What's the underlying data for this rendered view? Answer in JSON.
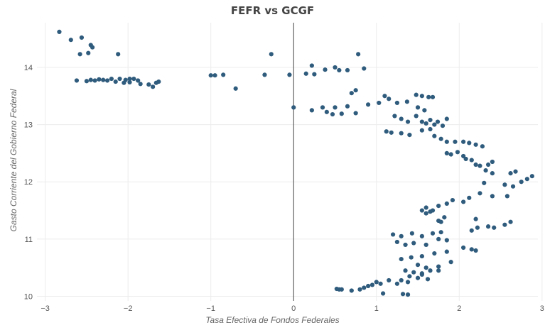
{
  "chart_data": {
    "type": "scatter",
    "title": "FEFR vs GCGF",
    "xlabel": "Tasa Efectiva de Fondos Federales",
    "ylabel": "Gasto Corriente del Gobierno Federal",
    "xlim": [
      -3.1,
      2.95
    ],
    "ylim": [
      9.92,
      14.78
    ],
    "xticks": [
      -3,
      -2,
      -1,
      0,
      1,
      2,
      3
    ],
    "yticks": [
      10,
      11,
      12,
      13,
      14
    ],
    "xtick_labels": [
      "−3",
      "−2",
      "−1",
      "0",
      "1",
      "2",
      "3"
    ],
    "ytick_labels": [
      "10",
      "11",
      "12",
      "13",
      "14"
    ],
    "grid": true,
    "zero_line_x": 0,
    "marker_color": "#2f5b7c",
    "points": [
      [
        -2.83,
        14.62
      ],
      [
        -2.69,
        14.48
      ],
      [
        -2.56,
        14.52
      ],
      [
        -2.45,
        14.39
      ],
      [
        -2.43,
        14.35
      ],
      [
        -2.48,
        14.25
      ],
      [
        -2.58,
        14.23
      ],
      [
        -2.12,
        14.23
      ],
      [
        -2.62,
        13.77
      ],
      [
        -2.5,
        13.76
      ],
      [
        -2.45,
        13.78
      ],
      [
        -2.4,
        13.77
      ],
      [
        -2.35,
        13.79
      ],
      [
        -2.3,
        13.78
      ],
      [
        -2.25,
        13.77
      ],
      [
        -2.2,
        13.8
      ],
      [
        -2.15,
        13.75
      ],
      [
        -2.1,
        13.8
      ],
      [
        -2.03,
        13.78
      ],
      [
        -1.98,
        13.74
      ],
      [
        -1.93,
        13.8
      ],
      [
        -1.88,
        13.77
      ],
      [
        -1.85,
        13.71
      ],
      [
        -1.75,
        13.7
      ],
      [
        -1.7,
        13.66
      ],
      [
        -1.66,
        13.73
      ],
      [
        -1.63,
        13.75
      ],
      [
        -2.05,
        13.73
      ],
      [
        -1.98,
        13.8
      ],
      [
        -1.0,
        13.86
      ],
      [
        -0.95,
        13.86
      ],
      [
        -0.85,
        13.87
      ],
      [
        -0.7,
        13.63
      ],
      [
        -0.35,
        13.87
      ],
      [
        -0.27,
        14.23
      ],
      [
        -0.05,
        13.87
      ],
      [
        0.0,
        13.3
      ],
      [
        0.15,
        13.89
      ],
      [
        0.22,
        14.03
      ],
      [
        0.25,
        13.88
      ],
      [
        0.38,
        13.96
      ],
      [
        0.5,
        14.0
      ],
      [
        0.55,
        13.95
      ],
      [
        0.65,
        13.95
      ],
      [
        0.78,
        14.23
      ],
      [
        0.85,
        13.98
      ],
      [
        0.75,
        13.6
      ],
      [
        0.7,
        13.55
      ],
      [
        0.65,
        13.32
      ],
      [
        0.5,
        13.3
      ],
      [
        0.35,
        13.3
      ],
      [
        0.22,
        13.25
      ],
      [
        0.4,
        13.22
      ],
      [
        0.47,
        13.18
      ],
      [
        0.58,
        13.19
      ],
      [
        0.75,
        13.2
      ],
      [
        0.9,
        13.35
      ],
      [
        1.03,
        13.38
      ],
      [
        1.1,
        13.5
      ],
      [
        1.15,
        13.45
      ],
      [
        1.25,
        13.38
      ],
      [
        1.37,
        13.4
      ],
      [
        1.48,
        13.52
      ],
      [
        1.55,
        13.5
      ],
      [
        1.63,
        13.48
      ],
      [
        1.68,
        13.48
      ],
      [
        1.22,
        13.15
      ],
      [
        1.3,
        13.1
      ],
      [
        1.38,
        13.05
      ],
      [
        1.48,
        13.15
      ],
      [
        1.55,
        13.05
      ],
      [
        1.6,
        13.02
      ],
      [
        1.65,
        13.08
      ],
      [
        1.7,
        13.0
      ],
      [
        1.74,
        13.05
      ],
      [
        1.8,
        12.98
      ],
      [
        1.85,
        13.1
      ],
      [
        1.5,
        13.3
      ],
      [
        1.58,
        13.25
      ],
      [
        1.12,
        12.88
      ],
      [
        1.18,
        12.86
      ],
      [
        1.3,
        12.85
      ],
      [
        1.4,
        12.82
      ],
      [
        1.55,
        12.9
      ],
      [
        1.65,
        12.92
      ],
      [
        1.7,
        12.8
      ],
      [
        1.78,
        12.75
      ],
      [
        1.85,
        12.7
      ],
      [
        1.95,
        12.7
      ],
      [
        2.05,
        12.7
      ],
      [
        2.12,
        12.68
      ],
      [
        2.2,
        12.65
      ],
      [
        2.28,
        12.62
      ],
      [
        1.85,
        12.5
      ],
      [
        1.9,
        12.48
      ],
      [
        1.98,
        12.52
      ],
      [
        2.05,
        12.45
      ],
      [
        2.08,
        12.4
      ],
      [
        2.15,
        12.38
      ],
      [
        2.2,
        12.3
      ],
      [
        2.25,
        12.28
      ],
      [
        2.35,
        12.3
      ],
      [
        2.4,
        12.35
      ],
      [
        2.32,
        12.2
      ],
      [
        2.4,
        12.15
      ],
      [
        2.62,
        12.15
      ],
      [
        2.68,
        12.18
      ],
      [
        2.55,
        11.95
      ],
      [
        2.65,
        11.92
      ],
      [
        2.75,
        12.0
      ],
      [
        2.82,
        12.05
      ],
      [
        2.88,
        12.1
      ],
      [
        2.3,
        11.98
      ],
      [
        2.25,
        11.8
      ],
      [
        2.4,
        11.75
      ],
      [
        2.58,
        11.75
      ],
      [
        2.12,
        11.72
      ],
      [
        2.05,
        11.65
      ],
      [
        1.92,
        11.68
      ],
      [
        1.85,
        11.62
      ],
      [
        1.75,
        11.58
      ],
      [
        1.6,
        11.55
      ],
      [
        1.55,
        11.5
      ],
      [
        1.68,
        11.5
      ],
      [
        1.65,
        11.48
      ],
      [
        1.6,
        11.45
      ],
      [
        1.82,
        11.38
      ],
      [
        1.75,
        11.32
      ],
      [
        1.78,
        11.3
      ],
      [
        2.2,
        11.35
      ],
      [
        2.35,
        11.22
      ],
      [
        2.42,
        11.2
      ],
      [
        2.55,
        11.25
      ],
      [
        2.62,
        11.3
      ],
      [
        2.22,
        11.2
      ],
      [
        1.2,
        11.08
      ],
      [
        1.3,
        11.05
      ],
      [
        1.43,
        11.1
      ],
      [
        1.55,
        11.05
      ],
      [
        1.68,
        11.1
      ],
      [
        1.78,
        11.12
      ],
      [
        2.15,
        11.15
      ],
      [
        1.25,
        10.95
      ],
      [
        1.35,
        10.9
      ],
      [
        1.45,
        10.93
      ],
      [
        1.6,
        10.9
      ],
      [
        1.75,
        11.0
      ],
      [
        1.85,
        10.98
      ],
      [
        2.05,
        10.85
      ],
      [
        2.15,
        10.82
      ],
      [
        2.2,
        10.8
      ],
      [
        1.3,
        10.65
      ],
      [
        1.42,
        10.68
      ],
      [
        1.55,
        10.7
      ],
      [
        1.7,
        10.75
      ],
      [
        1.85,
        10.78
      ],
      [
        1.5,
        10.55
      ],
      [
        1.6,
        10.5
      ],
      [
        1.75,
        10.52
      ],
      [
        1.9,
        10.6
      ],
      [
        1.35,
        10.45
      ],
      [
        1.45,
        10.42
      ],
      [
        1.55,
        10.4
      ],
      [
        1.65,
        10.45
      ],
      [
        1.75,
        10.45
      ],
      [
        1.4,
        10.35
      ],
      [
        1.5,
        10.32
      ],
      [
        1.62,
        10.3
      ],
      [
        1.55,
        10.38
      ],
      [
        1.3,
        10.28
      ],
      [
        1.38,
        10.25
      ],
      [
        1.25,
        10.22
      ],
      [
        1.15,
        10.28
      ],
      [
        1.05,
        10.22
      ],
      [
        1.0,
        10.25
      ],
      [
        0.95,
        10.2
      ],
      [
        0.9,
        10.18
      ],
      [
        0.85,
        10.15
      ],
      [
        0.8,
        10.12
      ],
      [
        0.7,
        10.1
      ],
      [
        0.58,
        10.12
      ],
      [
        0.55,
        10.12
      ],
      [
        1.08,
        10.05
      ],
      [
        1.32,
        10.04
      ],
      [
        1.38,
        10.03
      ],
      [
        0.52,
        10.13
      ]
    ]
  }
}
